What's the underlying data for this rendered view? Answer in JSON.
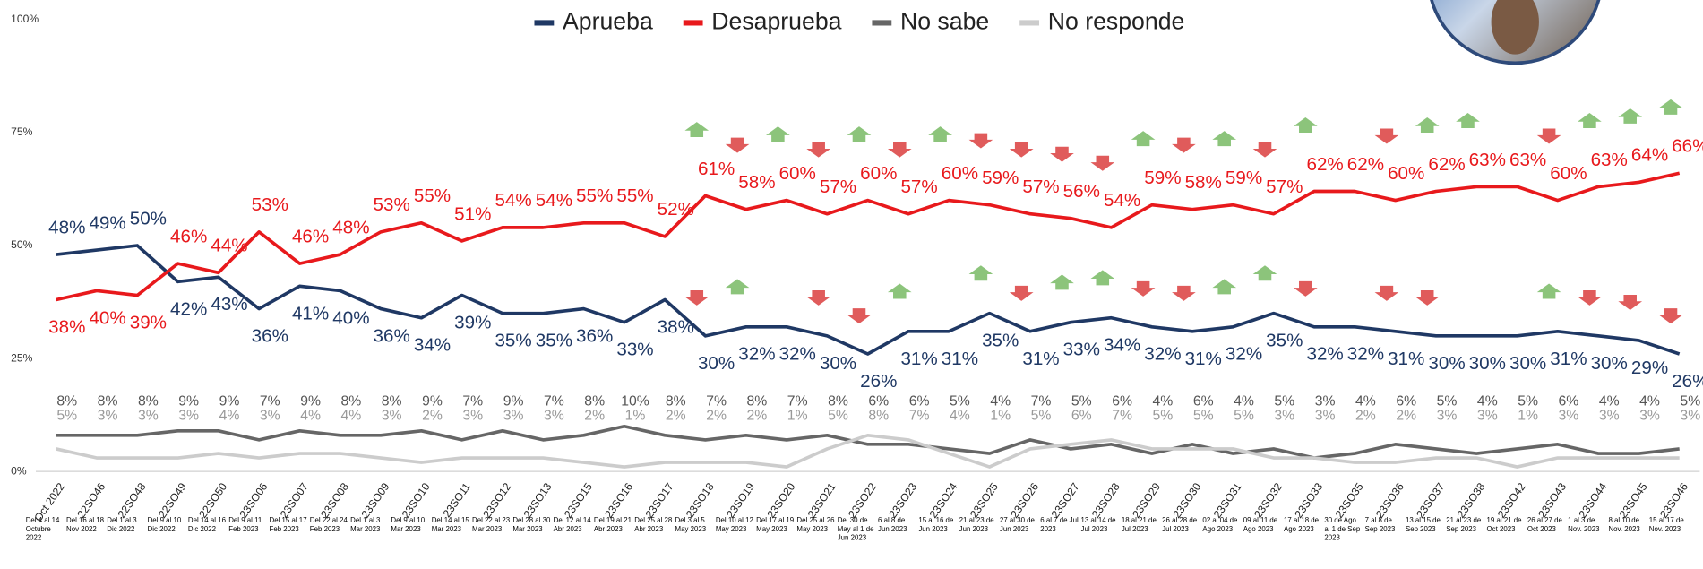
{
  "chart_data": {
    "type": "line",
    "categories": [
      "Oct 2022",
      "22SO46",
      "22SO48",
      "22SO49",
      "22SO50",
      "23SO06",
      "23SO07",
      "23SO08",
      "23SO09",
      "23SO10",
      "23SO11",
      "23SO12",
      "23SO13",
      "23SO15",
      "23SO16",
      "23SO17",
      "23SO18",
      "23SO19",
      "23SO20",
      "23SO21",
      "23SO22",
      "23SO23",
      "23SO24",
      "23SO25",
      "23SO26",
      "23SO27",
      "23SO28",
      "23SO29",
      "23SO30",
      "23SO31",
      "23SO32",
      "23SO33",
      "23SO35",
      "23SO36",
      "23SO37",
      "23SO38",
      "23SO42",
      "23SO43",
      "23SO44",
      "23SO45",
      "23SO46"
    ],
    "date_labels": [
      "Del 4 al 14 Octubre 2022",
      "Del 16 al 18 Nov 2022",
      "Del 1 al 3 Dic 2022",
      "Del 9 al 10 Dic 2022",
      "Del 14 al 16 Dic 2022",
      "Del 9 al 11 Feb 2023",
      "Del 15 al 17 Feb 2023",
      "Del 22 al 24 Feb 2023",
      "Del 1 al 3 Mar 2023",
      "Del 9 al 10 Mar 2023",
      "Del 14 al 15 Mar 2023",
      "Del 22 al 23 Mar 2023",
      "Del 28 al 30 Mar 2023",
      "Del 12 al 14 Abr 2023",
      "Del 19 al 21 Abr 2023",
      "Del 25 al 28 Abr 2023",
      "Del 3 al 5 May 2023",
      "Del 10 al 12 May 2023",
      "Del 17 al 19 May 2023",
      "Del 25 al 26 May 2023",
      "Del 30 de May al 1 de Jun 2023",
      "6 al 8 de Jun 2023",
      "15 al 16 de Jun 2023",
      "21 al 23 de Jun 2023",
      "27 al 30 de Jun 2023",
      "6 al 7 de Jul 2023",
      "13 al 14 de Jul 2023",
      "18 al 21 de Jul 2023",
      "26 al 28 de Jul 2023",
      "02 al 04 de Ago 2023",
      "09 al 11 de Ago 2023",
      "17 al 18 de Ago 2023",
      "30 de Ago al 1 de Sep 2023",
      "7 al 8 de Sep 2023",
      "13 al 15 de Sep 2023",
      "21 al 23 de Sep 2023",
      "19 al 21 de Oct 2023",
      "26 al 27 de Oct 2023",
      "1 al 3 de Nov. 2023",
      "8 al 10 de Nov. 2023",
      "15 al 17 de Nov. 2023"
    ],
    "series": [
      {
        "name": "Aprueba",
        "color": "#1f3864",
        "values": [
          48,
          49,
          50,
          42,
          43,
          36,
          41,
          40,
          36,
          34,
          39,
          35,
          35,
          36,
          33,
          38,
          30,
          32,
          32,
          30,
          26,
          31,
          31,
          35,
          31,
          33,
          34,
          32,
          31,
          32,
          35,
          32,
          32,
          31,
          30,
          30,
          30,
          31,
          30,
          29,
          26
        ],
        "value_labels": [
          "48%",
          "49%",
          "50%",
          "42%",
          "43%",
          "36%",
          "41%",
          "40%",
          "36%",
          "34%",
          "39%",
          "35%",
          "35%",
          "36%",
          "33%",
          "38%",
          "30%",
          "32%",
          "32%",
          "30%",
          "26%",
          "31%",
          "31%",
          "35%",
          "31%",
          "33%",
          "34%",
          "32%",
          "31%",
          "32%",
          "35%",
          "32%",
          "32%",
          "31%",
          "30%",
          "30%",
          "30%",
          "31%",
          "30%",
          "29%",
          "26%"
        ]
      },
      {
        "name": "Desaprueba",
        "color": "#e8191c",
        "values": [
          38,
          40,
          39,
          46,
          44,
          53,
          46,
          48,
          53,
          55,
          51,
          54,
          54,
          55,
          55,
          52,
          61,
          58,
          60,
          57,
          60,
          57,
          60,
          59,
          57,
          56,
          54,
          59,
          58,
          59,
          57,
          62,
          62,
          60,
          62,
          63,
          63,
          60,
          63,
          64,
          66
        ],
        "value_labels": [
          "38%",
          "40%",
          "39%",
          "46%",
          "44%",
          "53%",
          "46%",
          "48%",
          "53%",
          "55%",
          "51%",
          "54%",
          "54%",
          "55%",
          "55%",
          "52%",
          "61%",
          "58%",
          "60%",
          "57%",
          "60%",
          "57%",
          "60%",
          "59%",
          "57%",
          "56%",
          "54%",
          "59%",
          "58%",
          "59%",
          "57%",
          "62%",
          "62%",
          "60%",
          "62%",
          "63%",
          "63%",
          "60%",
          "63%",
          "64%",
          "66%"
        ]
      },
      {
        "name": "No sabe",
        "color": "#666666",
        "values": [
          8,
          8,
          8,
          9,
          9,
          7,
          9,
          8,
          8,
          9,
          7,
          9,
          7,
          8,
          10,
          8,
          7,
          8,
          7,
          8,
          6,
          6,
          5,
          4,
          7,
          5,
          6,
          4,
          6,
          4,
          5,
          3,
          4,
          6,
          5,
          4,
          5,
          6,
          4,
          4,
          5
        ],
        "value_labels": [
          "8%",
          "8%",
          "8%",
          "9%",
          "9%",
          "7%",
          "9%",
          "8%",
          "8%",
          "9%",
          "7%",
          "9%",
          "7%",
          "8%",
          "10%",
          "8%",
          "7%",
          "8%",
          "7%",
          "8%",
          "6%",
          "6%",
          "5%",
          "4%",
          "7%",
          "5%",
          "6%",
          "4%",
          "6%",
          "4%",
          "5%",
          "3%",
          "4%",
          "6%",
          "5%",
          "4%",
          "5%",
          "6%",
          "4%",
          "4%",
          "5%"
        ]
      },
      {
        "name": "No responde",
        "color": "#cccccc",
        "values": [
          5,
          3,
          3,
          3,
          4,
          3,
          4,
          4,
          3,
          2,
          3,
          3,
          3,
          2,
          1,
          2,
          2,
          2,
          1,
          5,
          8,
          7,
          4,
          1,
          5,
          6,
          7,
          5,
          5,
          5,
          3,
          3,
          2,
          2,
          3,
          3,
          1,
          3,
          3,
          3,
          3
        ],
        "value_labels": [
          "5%",
          "3%",
          "3%",
          "3%",
          "4%",
          "3%",
          "4%",
          "4%",
          "3%",
          "2%",
          "3%",
          "3%",
          "3%",
          "2%",
          "1%",
          "2%",
          "2%",
          "2%",
          "1%",
          "5%",
          "8%",
          "7%",
          "4%",
          "1%",
          "5%",
          "6%",
          "7%",
          "5%",
          "5%",
          "5%",
          "3%",
          "3%",
          "2%",
          "2%",
          "3%",
          "3%",
          "1%",
          "3%",
          "3%",
          "3%",
          "3%"
        ]
      }
    ],
    "ylim": [
      0,
      100
    ],
    "yticks": [
      {
        "value": 0,
        "label": "0%"
      },
      {
        "value": 25,
        "label": "25%"
      },
      {
        "value": 50,
        "label": "50%"
      },
      {
        "value": 75,
        "label": "75%"
      },
      {
        "value": 100,
        "label": "100%"
      }
    ],
    "legend": "top",
    "grid": false
  }
}
